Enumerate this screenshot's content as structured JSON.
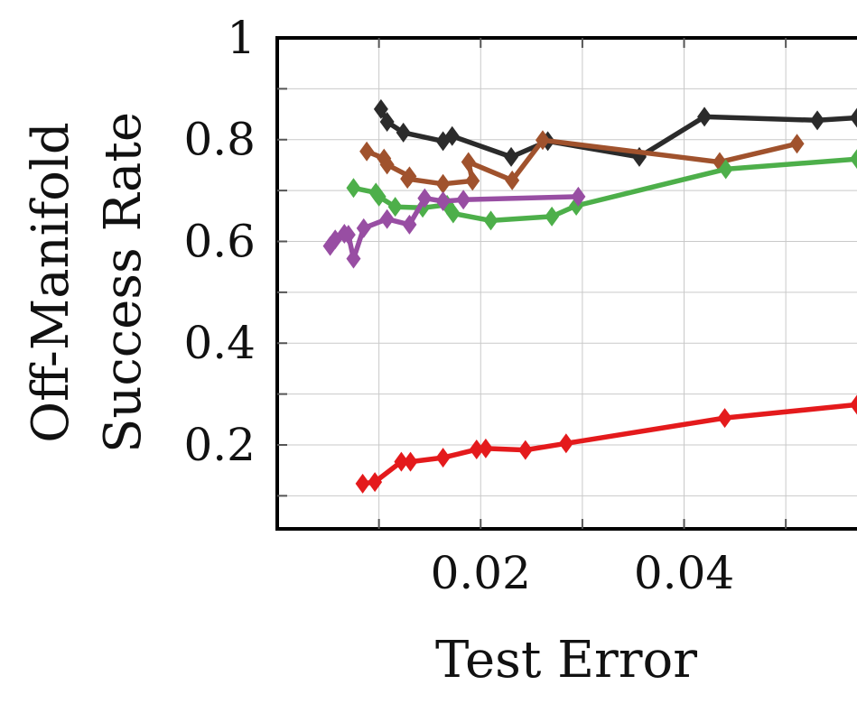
{
  "chart_data": {
    "type": "line",
    "title": "",
    "xlabel": "Test Error",
    "ylabel": [
      "Off-Manifold",
      "Success Rate"
    ],
    "xlim": [
      0.0,
      0.057
    ],
    "ylim": [
      0.035,
      1.0
    ],
    "x_ticks": [
      0.02,
      0.04
    ],
    "x_tick_labels": [
      "0.02",
      "0.04"
    ],
    "y_ticks": [
      0.2,
      0.4,
      0.6,
      0.8,
      1.0
    ],
    "y_tick_labels": [
      "0.2",
      "0.4",
      "0.6",
      "0.8",
      "1"
    ],
    "grid": true,
    "legend": "none",
    "marker": "diamond",
    "series": [
      {
        "color": "#2b2b2b",
        "x": [
          0.0102,
          0.0108,
          0.0124,
          0.0163,
          0.0172,
          0.023,
          0.0266,
          0.0356,
          0.042,
          0.0531,
          0.057
        ],
        "y": [
          0.86,
          0.835,
          0.814,
          0.797,
          0.807,
          0.766,
          0.797,
          0.766,
          0.845,
          0.838,
          0.843
        ]
      },
      {
        "color": "#a0522d",
        "x": [
          0.0088,
          0.0105,
          0.0108,
          0.013,
          0.0128,
          0.0163,
          0.0192,
          0.0188,
          0.0231,
          0.0261,
          0.0435,
          0.0511
        ],
        "y": [
          0.777,
          0.763,
          0.751,
          0.728,
          0.723,
          0.713,
          0.719,
          0.756,
          0.72,
          0.799,
          0.756,
          0.792
        ]
      },
      {
        "color": "#4daf4a",
        "x": [
          0.0075,
          0.0097,
          0.01,
          0.0116,
          0.0143,
          0.0167,
          0.0173,
          0.021,
          0.027,
          0.0294,
          0.0441,
          0.057
        ],
        "y": [
          0.705,
          0.696,
          0.688,
          0.668,
          0.666,
          0.672,
          0.655,
          0.641,
          0.649,
          0.67,
          0.742,
          0.762
        ]
      },
      {
        "color": "#984ea3",
        "x": [
          0.0052,
          0.0057,
          0.0066,
          0.007,
          0.0075,
          0.0085,
          0.0108,
          0.013,
          0.0145,
          0.0163,
          0.0183,
          0.0296
        ],
        "y": [
          0.591,
          0.604,
          0.615,
          0.613,
          0.566,
          0.626,
          0.644,
          0.633,
          0.685,
          0.679,
          0.682,
          0.688
        ]
      },
      {
        "color": "#e41a1c",
        "x": [
          0.0084,
          0.0096,
          0.0122,
          0.0131,
          0.0163,
          0.0196,
          0.0205,
          0.0244,
          0.0284,
          0.044,
          0.057
        ],
        "y": [
          0.124,
          0.127,
          0.167,
          0.167,
          0.175,
          0.191,
          0.193,
          0.19,
          0.203,
          0.253,
          0.279
        ]
      }
    ]
  }
}
